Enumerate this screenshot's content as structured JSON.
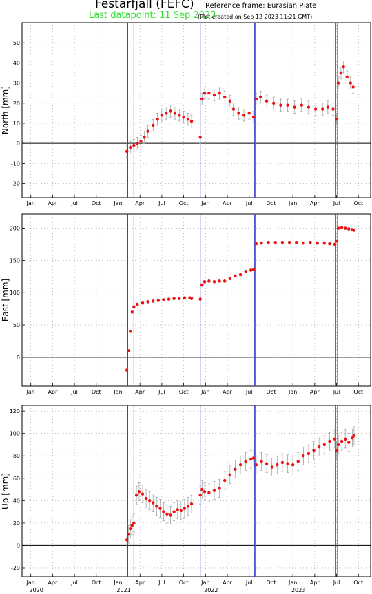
{
  "header": {
    "title": "Festarfjall (FEFC)",
    "reference_frame": "Reference frame: Eurasian Plate",
    "last_datapoint": "Last datapoint: 11 Sep 2023",
    "plot_created": "(Plot created on Sep 12 2023 11:21 GMT)"
  },
  "colors": {
    "data_point": "#ee1111",
    "error_bar": "#999999",
    "blue_line": "#3333cc",
    "red_line": "#dd3333",
    "grid": "#999999",
    "last_datapoint_text": "#33dd33"
  },
  "chart_data": [
    {
      "type": "scatter",
      "ylabel": "North [mm]",
      "ylim": [
        -27,
        60
      ],
      "yticks": [
        -20,
        -10,
        0,
        10,
        20,
        30,
        40,
        50
      ],
      "grid": true,
      "x_month_ticks": [
        "Jan",
        "Apr",
        "Jul",
        "Oct",
        "Jan",
        "Apr",
        "Jul",
        "Oct",
        "Jan",
        "Apr",
        "Jul",
        "Oct",
        "Jan",
        "Apr",
        "Jul",
        "Oct"
      ],
      "blue_lines": [
        2021.11,
        2021.94,
        2022.56,
        2023.49
      ],
      "red_lines": [
        2021.18,
        2022.57,
        2023.51
      ],
      "error_bar_mm": 3,
      "series": [
        {
          "x": [
            2021.1,
            2021.14,
            2021.18,
            2021.22,
            2021.26,
            2021.3,
            2021.34,
            2021.4,
            2021.45,
            2021.5,
            2021.55,
            2021.6,
            2021.65,
            2021.7,
            2021.75,
            2021.8,
            2021.84,
            2021.94,
            2021.96,
            2021.99,
            2022.04,
            2022.1,
            2022.16,
            2022.22,
            2022.28,
            2022.32,
            2022.38,
            2022.44,
            2022.5,
            2022.55,
            2022.58,
            2022.63,
            2022.7,
            2022.78,
            2022.86,
            2022.94,
            2023.02,
            2023.1,
            2023.18,
            2023.26,
            2023.34,
            2023.4,
            2023.46,
            2023.5,
            2023.52,
            2023.55,
            2023.58,
            2023.62,
            2023.66,
            2023.69
          ],
          "y": [
            -4,
            -2,
            -1,
            0,
            1,
            3,
            6,
            9,
            12,
            14,
            15,
            16,
            15,
            14,
            13,
            12,
            11,
            3,
            22,
            25,
            25,
            24,
            25,
            23,
            21,
            17,
            15,
            14,
            15,
            13,
            22,
            23,
            21,
            20,
            19,
            19,
            18,
            19,
            18,
            17,
            17,
            18,
            17,
            12,
            30,
            35,
            38,
            33,
            30,
            28
          ]
        }
      ]
    },
    {
      "type": "scatter",
      "ylabel": "East [mm]",
      "ylim": [
        -45,
        222
      ],
      "yticks": [
        0,
        50,
        100,
        150,
        200
      ],
      "grid": true,
      "x_month_ticks": [
        "Jan",
        "Apr",
        "Jul",
        "Oct",
        "Jan",
        "Apr",
        "Jul",
        "Oct",
        "Jan",
        "Apr",
        "Jul",
        "Oct",
        "Jan",
        "Apr",
        "Jul",
        "Oct"
      ],
      "blue_lines": [
        2021.11,
        2021.94,
        2022.56,
        2023.49
      ],
      "red_lines": [
        2021.18,
        2022.57,
        2023.51
      ],
      "error_bar_mm": 2,
      "series": [
        {
          "x": [
            2021.1,
            2021.12,
            2021.14,
            2021.16,
            2021.18,
            2021.22,
            2021.28,
            2021.34,
            2021.4,
            2021.46,
            2021.52,
            2021.58,
            2021.64,
            2021.7,
            2021.76,
            2021.82,
            2021.84,
            2021.94,
            2021.96,
            2021.99,
            2022.04,
            2022.1,
            2022.16,
            2022.22,
            2022.28,
            2022.34,
            2022.4,
            2022.46,
            2022.52,
            2022.55,
            2022.58,
            2022.64,
            2022.72,
            2022.8,
            2022.88,
            2022.96,
            2023.04,
            2023.12,
            2023.2,
            2023.28,
            2023.36,
            2023.42,
            2023.48,
            2023.5,
            2023.52,
            2023.56,
            2023.6,
            2023.64,
            2023.68,
            2023.7
          ],
          "y": [
            -20,
            10,
            40,
            70,
            78,
            82,
            84,
            86,
            87,
            88,
            89,
            90,
            91,
            91,
            92,
            92,
            91,
            90,
            112,
            117,
            118,
            117,
            118,
            118,
            122,
            126,
            128,
            133,
            135,
            136,
            176,
            177,
            178,
            178,
            178,
            178,
            178,
            177,
            178,
            177,
            177,
            176,
            175,
            180,
            200,
            201,
            200,
            199,
            198,
            197
          ]
        }
      ]
    },
    {
      "type": "scatter",
      "ylabel": "Up [mm]",
      "ylim": [
        -28,
        125
      ],
      "yticks": [
        -20,
        0,
        20,
        40,
        60,
        80,
        100,
        120
      ],
      "grid": true,
      "x_month_ticks": [
        "Jan",
        "Apr",
        "Jul",
        "Oct",
        "Jan",
        "Apr",
        "Jul",
        "Oct",
        "Jan",
        "Apr",
        "Jul",
        "Oct",
        "Jan",
        "Apr",
        "Jul",
        "Oct"
      ],
      "x_year_labels": [
        "2020",
        "2021",
        "2022",
        "2023"
      ],
      "x_year_values": [
        2020.0,
        2021.0,
        2022.0,
        2023.0
      ],
      "blue_lines": [
        2021.11,
        2021.94,
        2022.56,
        2023.49
      ],
      "red_lines": [
        2021.18,
        2022.57,
        2023.51
      ],
      "error_bar_mm": 8,
      "series": [
        {
          "x": [
            2021.1,
            2021.12,
            2021.14,
            2021.16,
            2021.18,
            2021.21,
            2021.24,
            2021.28,
            2021.32,
            2021.36,
            2021.4,
            2021.44,
            2021.48,
            2021.52,
            2021.56,
            2021.6,
            2021.64,
            2021.68,
            2021.72,
            2021.76,
            2021.8,
            2021.84,
            2021.94,
            2021.96,
            2021.99,
            2022.04,
            2022.1,
            2022.16,
            2022.22,
            2022.28,
            2022.34,
            2022.4,
            2022.46,
            2022.52,
            2022.55,
            2022.58,
            2022.64,
            2022.7,
            2022.76,
            2022.82,
            2022.88,
            2022.94,
            2023.0,
            2023.06,
            2023.12,
            2023.18,
            2023.24,
            2023.3,
            2023.36,
            2023.42,
            2023.48,
            2023.5,
            2023.52,
            2023.56,
            2023.6,
            2023.64,
            2023.68,
            2023.7
          ],
          "y": [
            5,
            10,
            15,
            18,
            20,
            45,
            48,
            46,
            42,
            40,
            38,
            35,
            33,
            30,
            28,
            27,
            30,
            32,
            31,
            33,
            35,
            37,
            45,
            50,
            48,
            47,
            49,
            51,
            58,
            63,
            68,
            72,
            75,
            77,
            78,
            72,
            75,
            73,
            70,
            72,
            74,
            73,
            72,
            75,
            80,
            82,
            85,
            88,
            90,
            93,
            95,
            85,
            90,
            93,
            95,
            92,
            96,
            98
          ]
        }
      ]
    }
  ]
}
